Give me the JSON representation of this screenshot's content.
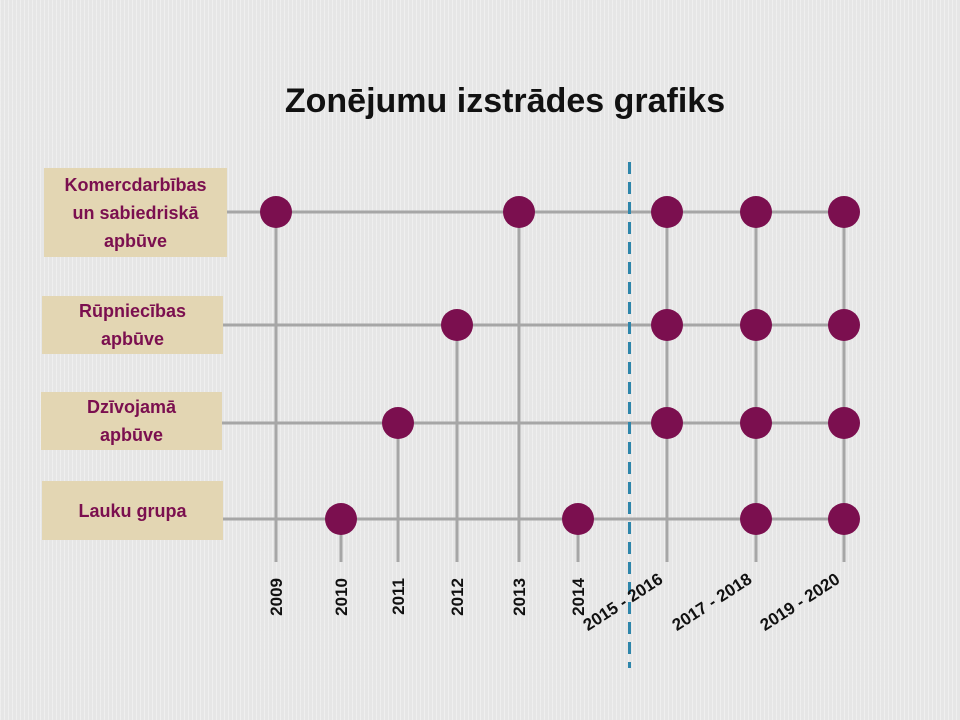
{
  "title": "Zonējumu izstrādes grafiks",
  "chart_data": {
    "type": "scatter",
    "categories": [
      "Komercdarbības\nun sabiedriskā\napbūve",
      "Rūpniecības\napbūve",
      "Dzīvojamā\napbūve",
      "Lauku grupa"
    ],
    "x": [
      "2009",
      "2010",
      "2011",
      "2012",
      "2013",
      "2014",
      "2015 - 2016",
      "2017 - 2018",
      "2019 - 2020"
    ],
    "divider_after": "2014",
    "points": [
      {
        "category": "Komercdarbības\nun sabiedriskā\napbūve",
        "x": "2009"
      },
      {
        "category": "Komercdarbības\nun sabiedriskā\napbūve",
        "x": "2013"
      },
      {
        "category": "Komercdarbības\nun sabiedriskā\napbūve",
        "x": "2015 - 2016"
      },
      {
        "category": "Komercdarbības\nun sabiedriskā\napbūve",
        "x": "2017 - 2018"
      },
      {
        "category": "Komercdarbības\nun sabiedriskā\napbūve",
        "x": "2019 - 2020"
      },
      {
        "category": "Rūpniecības\napbūve",
        "x": "2012"
      },
      {
        "category": "Rūpniecības\napbūve",
        "x": "2015 - 2016"
      },
      {
        "category": "Rūpniecības\napbūve",
        "x": "2017 - 2018"
      },
      {
        "category": "Rūpniecības\napbūve",
        "x": "2019 - 2020"
      },
      {
        "category": "Dzīvojamā\napbūve",
        "x": "2011"
      },
      {
        "category": "Dzīvojamā\napbūve",
        "x": "2015 - 2016"
      },
      {
        "category": "Dzīvojamā\napbūve",
        "x": "2017 - 2018"
      },
      {
        "category": "Dzīvojamā\napbūve",
        "x": "2019 - 2020"
      },
      {
        "category": "Lauku grupa",
        "x": "2010"
      },
      {
        "category": "Lauku grupa",
        "x": "2014"
      },
      {
        "category": "Lauku grupa",
        "x": "2017 - 2018"
      },
      {
        "category": "Lauku grupa",
        "x": "2019 - 2020"
      }
    ]
  },
  "colors": {
    "point": "#7b0f4f",
    "line": "#a6a6a6",
    "divider": "#2e86ab",
    "box": "#e3d6b3",
    "label": "#7b0f4f"
  }
}
